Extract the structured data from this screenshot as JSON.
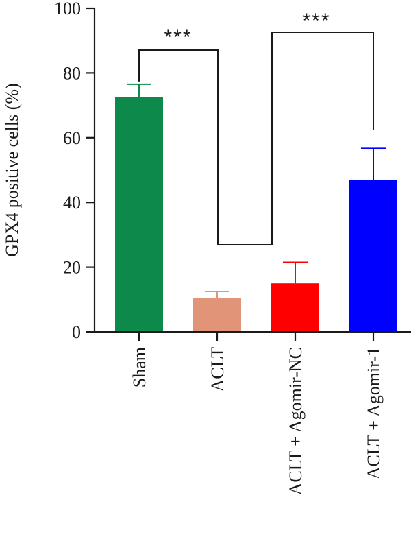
{
  "chart_data": {
    "type": "bar",
    "title": "",
    "xlabel": "",
    "ylabel": "GPX4 positive cells (%)",
    "ylim": [
      0,
      100
    ],
    "yticks": [
      0,
      20,
      40,
      60,
      80,
      100
    ],
    "grid": false,
    "categories": [
      "Sham",
      "ACLT",
      "ACLT + Agomir-NC",
      "ACLT + Agomir-1"
    ],
    "values": [
      72.5,
      10.5,
      15,
      47
    ],
    "errors": [
      4,
      2,
      6.5,
      9.7
    ],
    "colors": [
      "#0d8a4b",
      "#e29478",
      "#fe0000",
      "#0000fe"
    ],
    "significance": [
      {
        "from": 0,
        "to": 1,
        "label": "***"
      },
      {
        "from": 2,
        "to": 3,
        "label": "***"
      }
    ]
  }
}
